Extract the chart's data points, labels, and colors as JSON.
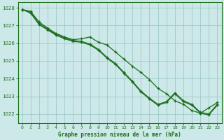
{
  "title": "Graphe pression niveau de la mer (hPa)",
  "background_color": "#cce8e8",
  "grid_color": "#a0c8c8",
  "line_color": "#1a6e1a",
  "xlim": [
    -0.5,
    23.5
  ],
  "ylim": [
    1021.5,
    1028.3
  ],
  "yticks": [
    1022,
    1023,
    1024,
    1025,
    1026,
    1027,
    1028
  ],
  "xticks": [
    0,
    1,
    2,
    3,
    4,
    5,
    6,
    7,
    8,
    9,
    10,
    11,
    12,
    13,
    14,
    15,
    16,
    17,
    18,
    19,
    20,
    21,
    22,
    23
  ],
  "line1_x": [
    0,
    1,
    2,
    3,
    4,
    5,
    6,
    7,
    8,
    9,
    10,
    11,
    12,
    13,
    14,
    15,
    16,
    17,
    18,
    19,
    20,
    21,
    22,
    23
  ],
  "line1_y": [
    1027.9,
    1027.8,
    1027.2,
    1026.85,
    1026.55,
    1026.35,
    1026.2,
    1026.25,
    1026.35,
    1026.05,
    1025.9,
    1025.5,
    1025.1,
    1024.7,
    1024.35,
    1023.95,
    1023.45,
    1023.15,
    1022.75,
    1022.55,
    1022.2,
    1022.05,
    1022.35,
    1022.65
  ],
  "line2_x": [
    0,
    1,
    2,
    3,
    4,
    5,
    6,
    7,
    8,
    9,
    10,
    11,
    12,
    13,
    14,
    15,
    16,
    17,
    18,
    19,
    20,
    21,
    22,
    23
  ],
  "line2_y": [
    1027.9,
    1027.75,
    1027.1,
    1026.8,
    1026.5,
    1026.3,
    1026.15,
    1026.1,
    1025.95,
    1025.65,
    1025.2,
    1024.85,
    1024.35,
    1023.85,
    1023.3,
    1022.9,
    1022.55,
    1022.7,
    1023.2,
    1022.75,
    1022.55,
    1022.1,
    1022.0,
    1022.55
  ],
  "line3_x": [
    0,
    1,
    2,
    3,
    4,
    5,
    6,
    7,
    8,
    9,
    10,
    11,
    12,
    13,
    14,
    15,
    16,
    17,
    18,
    19,
    20,
    21,
    22,
    23
  ],
  "line3_y": [
    1027.9,
    1027.7,
    1027.05,
    1026.75,
    1026.45,
    1026.25,
    1026.1,
    1026.05,
    1025.9,
    1025.6,
    1025.15,
    1024.8,
    1024.3,
    1023.8,
    1023.25,
    1022.85,
    1022.5,
    1022.65,
    1023.15,
    1022.7,
    1022.5,
    1022.05,
    1021.95,
    1022.5
  ]
}
